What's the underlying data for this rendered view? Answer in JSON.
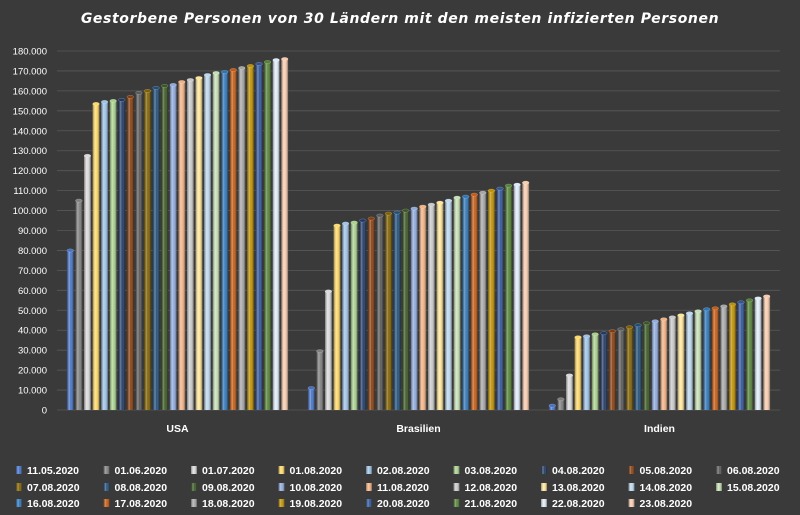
{
  "chart_data": {
    "type": "bar",
    "title": "Gestorbene Personen von 30 Ländern mit den meisten infizierten Personen",
    "xlabel": "",
    "ylabel": "",
    "ylim": [
      0,
      180000
    ],
    "y_ticks": [
      "0",
      "10.000",
      "20.000",
      "30.000",
      "40.000",
      "50.000",
      "60.000",
      "70.000",
      "80.000",
      "90.000",
      "100.000",
      "110.000",
      "120.000",
      "130.000",
      "140.000",
      "150.000",
      "160.000",
      "170.000",
      "180.000"
    ],
    "categories": [
      "USA",
      "Brasilien",
      "Indien"
    ],
    "grid": true,
    "legend_position": "bottom",
    "series": [
      {
        "name": "11.05.2020",
        "color": "#4472c4",
        "values": [
          80000,
          11000,
          2200
        ]
      },
      {
        "name": "01.06.2020",
        "color": "#7f7f7f",
        "values": [
          105000,
          29500,
          5400
        ]
      },
      {
        "name": "01.07.2020",
        "color": "#d9d9d9",
        "values": [
          127500,
          59500,
          17400
        ]
      },
      {
        "name": "01.08.2020",
        "color": "#ffd966",
        "values": [
          153500,
          92500,
          36500
        ]
      },
      {
        "name": "02.08.2020",
        "color": "#9dc3e6",
        "values": [
          154500,
          93500,
          37000
        ]
      },
      {
        "name": "03.08.2020",
        "color": "#a9d18e",
        "values": [
          155000,
          94000,
          38000
        ]
      },
      {
        "name": "04.08.2020",
        "color": "#1f3864",
        "values": [
          155500,
          95000,
          38500
        ]
      },
      {
        "name": "05.08.2020",
        "color": "#843c0c",
        "values": [
          157000,
          96000,
          39500
        ]
      },
      {
        "name": "06.08.2020",
        "color": "#595959",
        "values": [
          159000,
          97500,
          40500
        ]
      },
      {
        "name": "07.08.2020",
        "color": "#7f6000",
        "values": [
          160000,
          98500,
          41500
        ]
      },
      {
        "name": "08.08.2020",
        "color": "#1f4e79",
        "values": [
          161500,
          99000,
          42500
        ]
      },
      {
        "name": "09.08.2020",
        "color": "#385723",
        "values": [
          162500,
          100000,
          43500
        ]
      },
      {
        "name": "10.08.2020",
        "color": "#8faadc",
        "values": [
          163000,
          101000,
          44500
        ]
      },
      {
        "name": "11.08.2020",
        "color": "#f4b183",
        "values": [
          164500,
          102000,
          45500
        ]
      },
      {
        "name": "12.08.2020",
        "color": "#c9c9c9",
        "values": [
          165500,
          103000,
          46500
        ]
      },
      {
        "name": "13.08.2020",
        "color": "#ffe699",
        "values": [
          166500,
          104000,
          47500
        ]
      },
      {
        "name": "14.08.2020",
        "color": "#bdd7ee",
        "values": [
          168000,
          105000,
          48500
        ]
      },
      {
        "name": "15.08.2020",
        "color": "#c5e0b4",
        "values": [
          169000,
          106500,
          49500
        ]
      },
      {
        "name": "16.08.2020",
        "color": "#2e75b6",
        "values": [
          169500,
          107000,
          50500
        ]
      },
      {
        "name": "17.08.2020",
        "color": "#c55a11",
        "values": [
          170500,
          108000,
          51000
        ]
      },
      {
        "name": "18.08.2020",
        "color": "#a6a6a6",
        "values": [
          171500,
          109000,
          52000
        ]
      },
      {
        "name": "19.08.2020",
        "color": "#bf9000",
        "values": [
          172500,
          110000,
          53000
        ]
      },
      {
        "name": "20.08.2020",
        "color": "#2f5597",
        "values": [
          173500,
          111000,
          54000
        ]
      },
      {
        "name": "21.08.2020",
        "color": "#548235",
        "values": [
          174500,
          112500,
          55000
        ]
      },
      {
        "name": "22.08.2020",
        "color": "#deebf7",
        "values": [
          175500,
          113000,
          56000
        ]
      },
      {
        "name": "23.08.2020",
        "color": "#f8cbad",
        "values": [
          176000,
          114000,
          57000
        ]
      }
    ]
  }
}
